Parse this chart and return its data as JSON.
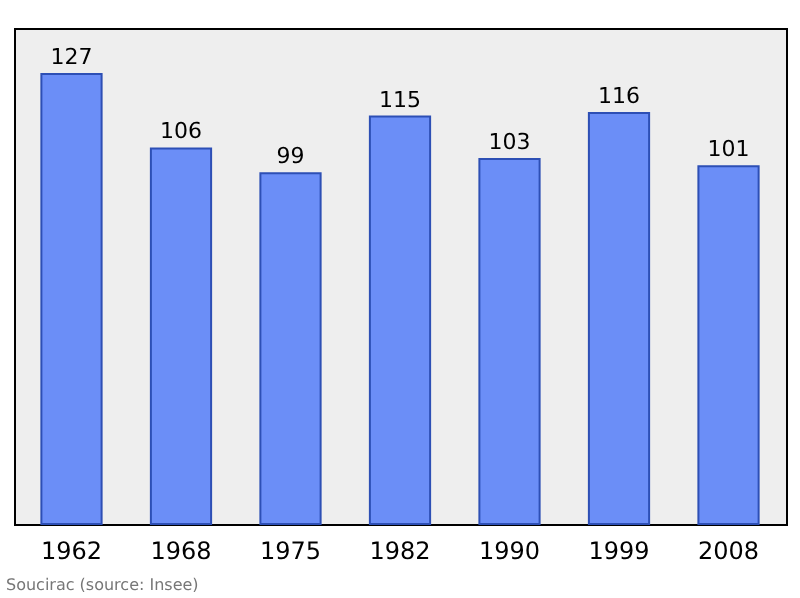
{
  "chart_data": {
    "type": "bar",
    "categories": [
      "1962",
      "1968",
      "1975",
      "1982",
      "1990",
      "1999",
      "2008"
    ],
    "values": [
      127,
      106,
      99,
      115,
      103,
      116,
      101
    ],
    "color": "#6b8ef7",
    "ylim": [
      0,
      140
    ],
    "data_labels": true,
    "grid": false,
    "tick_labels": "x",
    "annotations": [
      "Soucirac    (source: Insee)"
    ]
  }
}
